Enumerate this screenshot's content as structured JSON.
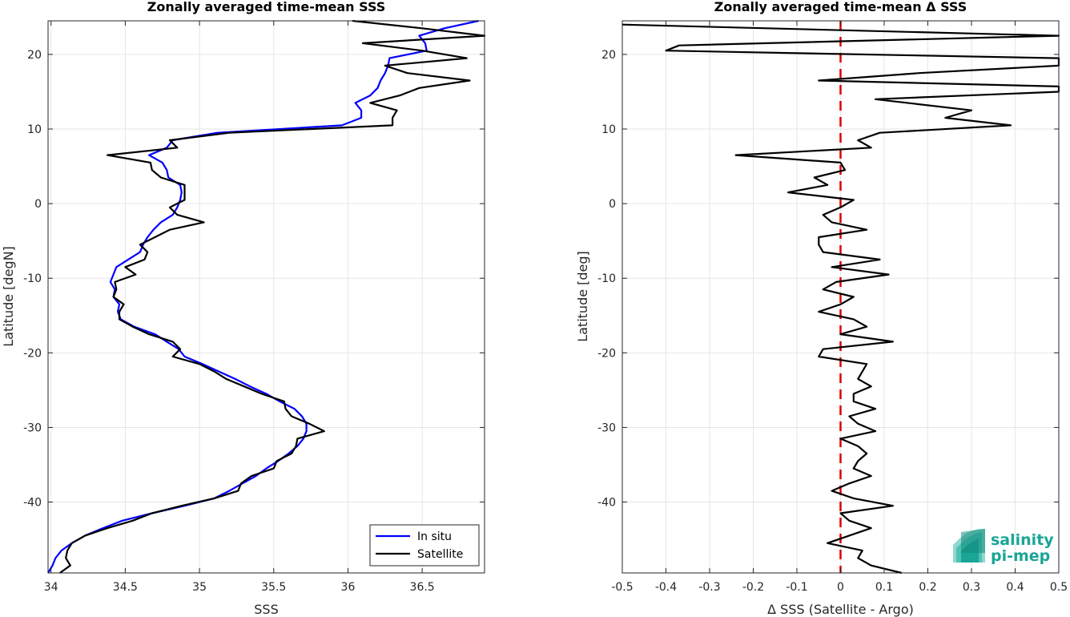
{
  "logo": {
    "line1": "salinity",
    "line2": "pi-mep"
  },
  "chart_data": [
    {
      "type": "line",
      "title": "Zonally averaged time-mean SSS",
      "xlabel": "SSS",
      "ylabel": "Latitude [degN]",
      "xlim": [
        33.98,
        36.92
      ],
      "ylim": [
        -49.5,
        24.5
      ],
      "xticks": [
        34,
        34.5,
        35,
        35.5,
        36,
        36.5
      ],
      "xtick_labels": [
        "34",
        "34.5",
        "35",
        "35.5",
        "36",
        "36.5"
      ],
      "yticks": [
        -40,
        -30,
        -20,
        -10,
        0,
        10,
        20
      ],
      "ytick_labels": [
        "-40",
        "-30",
        "-20",
        "-10",
        "0",
        "10",
        "20"
      ],
      "grid": true,
      "legend_position": "bottom-right",
      "series": [
        {
          "name": "In situ",
          "color": "#0000ff",
          "lat": [
            24.5,
            23.5,
            22.5,
            21.5,
            20.5,
            19.5,
            18.5,
            17.5,
            16.5,
            15.5,
            14.5,
            13.5,
            12.5,
            11.5,
            10.5,
            9.5,
            8.5,
            7.5,
            6.5,
            5.5,
            4.5,
            3.5,
            2.5,
            1.5,
            0.5,
            -0.5,
            -1.5,
            -2.5,
            -3.5,
            -4.5,
            -5.5,
            -6.5,
            -7.5,
            -8.5,
            -9.5,
            -10.5,
            -11.5,
            -12.5,
            -13.5,
            -14.5,
            -15.5,
            -16.5,
            -17.5,
            -18.5,
            -19.5,
            -20.5,
            -21.5,
            -22.5,
            -23.5,
            -24.5,
            -25.5,
            -26.5,
            -27.5,
            -28.5,
            -29.5,
            -30.5,
            -31.5,
            -32.5,
            -33.5,
            -34.5,
            -35.5,
            -36.5,
            -37.5,
            -38.5,
            -39.5,
            -40.5,
            -41.5,
            -42.5,
            -43.5,
            -44.5,
            -45.5,
            -46.5,
            -47.5,
            -48.5,
            -49.5
          ],
          "values": [
            36.88,
            36.65,
            36.48,
            36.52,
            36.53,
            36.28,
            36.27,
            36.25,
            36.22,
            36.2,
            36.15,
            36.05,
            36.09,
            36.09,
            35.96,
            35.12,
            34.82,
            34.78,
            34.66,
            34.75,
            34.78,
            34.79,
            34.87,
            34.88,
            34.87,
            34.85,
            34.82,
            34.74,
            34.69,
            34.65,
            34.62,
            34.6,
            34.52,
            34.44,
            34.42,
            34.4,
            34.43,
            34.42,
            34.46,
            34.45,
            34.47,
            34.56,
            34.7,
            34.78,
            34.86,
            34.9,
            35.02,
            35.13,
            35.24,
            35.34,
            35.45,
            35.54,
            35.64,
            35.69,
            35.72,
            35.72,
            35.7,
            35.66,
            35.6,
            35.53,
            35.45,
            35.38,
            35.29,
            35.2,
            35.1,
            34.9,
            34.68,
            34.48,
            34.35,
            34.23,
            34.14,
            34.07,
            34.03,
            34.01,
            33.98
          ]
        },
        {
          "name": "Satellite",
          "color": "#000000",
          "lat": [
            24.5,
            23.5,
            22.5,
            21.5,
            20.5,
            19.5,
            18.5,
            17.5,
            16.5,
            15.5,
            14.5,
            13.5,
            12.5,
            11.5,
            10.5,
            9.5,
            8.5,
            7.5,
            6.5,
            5.5,
            4.5,
            3.5,
            2.5,
            1.5,
            0.5,
            -0.5,
            -1.5,
            -2.5,
            -3.5,
            -4.5,
            -5.5,
            -6.5,
            -7.5,
            -8.5,
            -9.5,
            -10.5,
            -11.5,
            -12.5,
            -13.5,
            -14.5,
            -15.5,
            -16.5,
            -17.5,
            -18.5,
            -19.5,
            -20.5,
            -21.5,
            -22.5,
            -23.5,
            -24.5,
            -25.5,
            -26.5,
            -27.5,
            -28.5,
            -29.5,
            -30.5,
            -31.5,
            -32.5,
            -33.5,
            -34.5,
            -35.5,
            -36.5,
            -37.5,
            -38.5,
            -39.5,
            -40.5,
            -41.5,
            -42.5,
            -43.5,
            -44.5,
            -45.5,
            -46.5,
            -47.5,
            -48.5,
            -49.5
          ],
          "values": [
            36.03,
            36.5,
            36.92,
            36.1,
            36.5,
            36.8,
            36.25,
            36.4,
            36.82,
            36.48,
            36.35,
            36.15,
            36.33,
            36.3,
            36.3,
            35.2,
            34.8,
            34.85,
            34.38,
            34.67,
            34.68,
            34.74,
            34.9,
            34.9,
            34.9,
            34.8,
            34.85,
            35.03,
            34.8,
            34.7,
            34.6,
            34.65,
            34.63,
            34.5,
            34.57,
            34.43,
            34.44,
            34.42,
            34.49,
            34.46,
            34.46,
            34.55,
            34.66,
            34.82,
            34.87,
            34.82,
            35.0,
            35.1,
            35.18,
            35.3,
            35.42,
            35.57,
            35.58,
            35.62,
            35.74,
            35.84,
            35.66,
            35.65,
            35.62,
            35.52,
            35.5,
            35.35,
            35.28,
            35.26,
            35.1,
            34.88,
            34.68,
            34.55,
            34.38,
            34.23,
            34.14,
            34.11,
            34.1,
            34.13,
            34.06
          ]
        }
      ]
    },
    {
      "type": "line",
      "title": "Zonally averaged time-mean Δ SSS",
      "xlabel": "Δ SSS (Satellite - Argo)",
      "ylabel": "Latitude [deg]",
      "xlim": [
        -0.5,
        0.5
      ],
      "ylim": [
        -49.5,
        24.5
      ],
      "xticks": [
        -0.5,
        -0.4,
        -0.3,
        -0.2,
        -0.1,
        0,
        0.1,
        0.2,
        0.3,
        0.4,
        0.5
      ],
      "xtick_labels": [
        "-0.5",
        "-0.4",
        "-0.3",
        "-0.2",
        "-0.1",
        "0",
        "0.1",
        "0.2",
        "0.3",
        "0.4",
        "0.5"
      ],
      "yticks": [
        -40,
        -30,
        -20,
        -10,
        0,
        10,
        20
      ],
      "ytick_labels": [
        "-40",
        "-30",
        "-20",
        "-10",
        "0",
        "10",
        "20"
      ],
      "grid": true,
      "reference_line": {
        "x": 0,
        "color": "#dd0000",
        "style": "dashed"
      },
      "series": [
        {
          "color": "#000000",
          "lat": [
            24.0,
            22.5,
            21.2,
            20.5,
            19.5,
            18.5,
            17.5,
            16.5,
            15.7,
            15.0,
            14.0,
            12.5,
            11.5,
            10.5,
            9.5,
            8.5,
            7.5,
            6.5,
            5.5,
            4.5,
            3.5,
            2.5,
            1.5,
            0.5,
            -0.5,
            -1.5,
            -2.5,
            -3.5,
            -4.5,
            -5.5,
            -6.5,
            -7.5,
            -8.5,
            -9.5,
            -10.5,
            -11.5,
            -12.5,
            -13.5,
            -14.5,
            -15.5,
            -16.5,
            -17.5,
            -18.5,
            -19.5,
            -20.5,
            -21.5,
            -22.5,
            -23.5,
            -24.5,
            -25.5,
            -26.5,
            -27.5,
            -28.5,
            -29.5,
            -30.5,
            -31.5,
            -32.5,
            -33.5,
            -34.5,
            -35.5,
            -36.5,
            -37.5,
            -38.5,
            -39.5,
            -40.5,
            -41.5,
            -42.5,
            -43.5,
            -44.5,
            -45.5,
            -46.5,
            -47.5,
            -48.5,
            -49.5
          ],
          "values": [
            -0.5,
            0.5,
            -0.37,
            -0.4,
            0.5,
            0.5,
            0.18,
            -0.05,
            0.5,
            0.5,
            0.08,
            0.3,
            0.24,
            0.39,
            0.09,
            0.04,
            0.07,
            -0.24,
            0.0,
            0.01,
            -0.06,
            -0.03,
            -0.12,
            0.03,
            0.0,
            -0.04,
            -0.02,
            0.06,
            -0.05,
            -0.05,
            -0.04,
            0.09,
            -0.02,
            0.11,
            -0.01,
            -0.04,
            0.03,
            0.0,
            -0.05,
            0.03,
            0.06,
            0.0,
            0.12,
            -0.04,
            -0.05,
            0.06,
            0.05,
            0.04,
            0.07,
            0.03,
            0.03,
            0.08,
            0.02,
            0.04,
            0.08,
            0.0,
            0.04,
            0.06,
            0.04,
            0.03,
            0.07,
            0.02,
            -0.02,
            0.03,
            0.12,
            0.0,
            0.02,
            0.07,
            0.02,
            -0.03,
            0.05,
            0.04,
            0.07,
            0.14
          ]
        }
      ]
    }
  ]
}
